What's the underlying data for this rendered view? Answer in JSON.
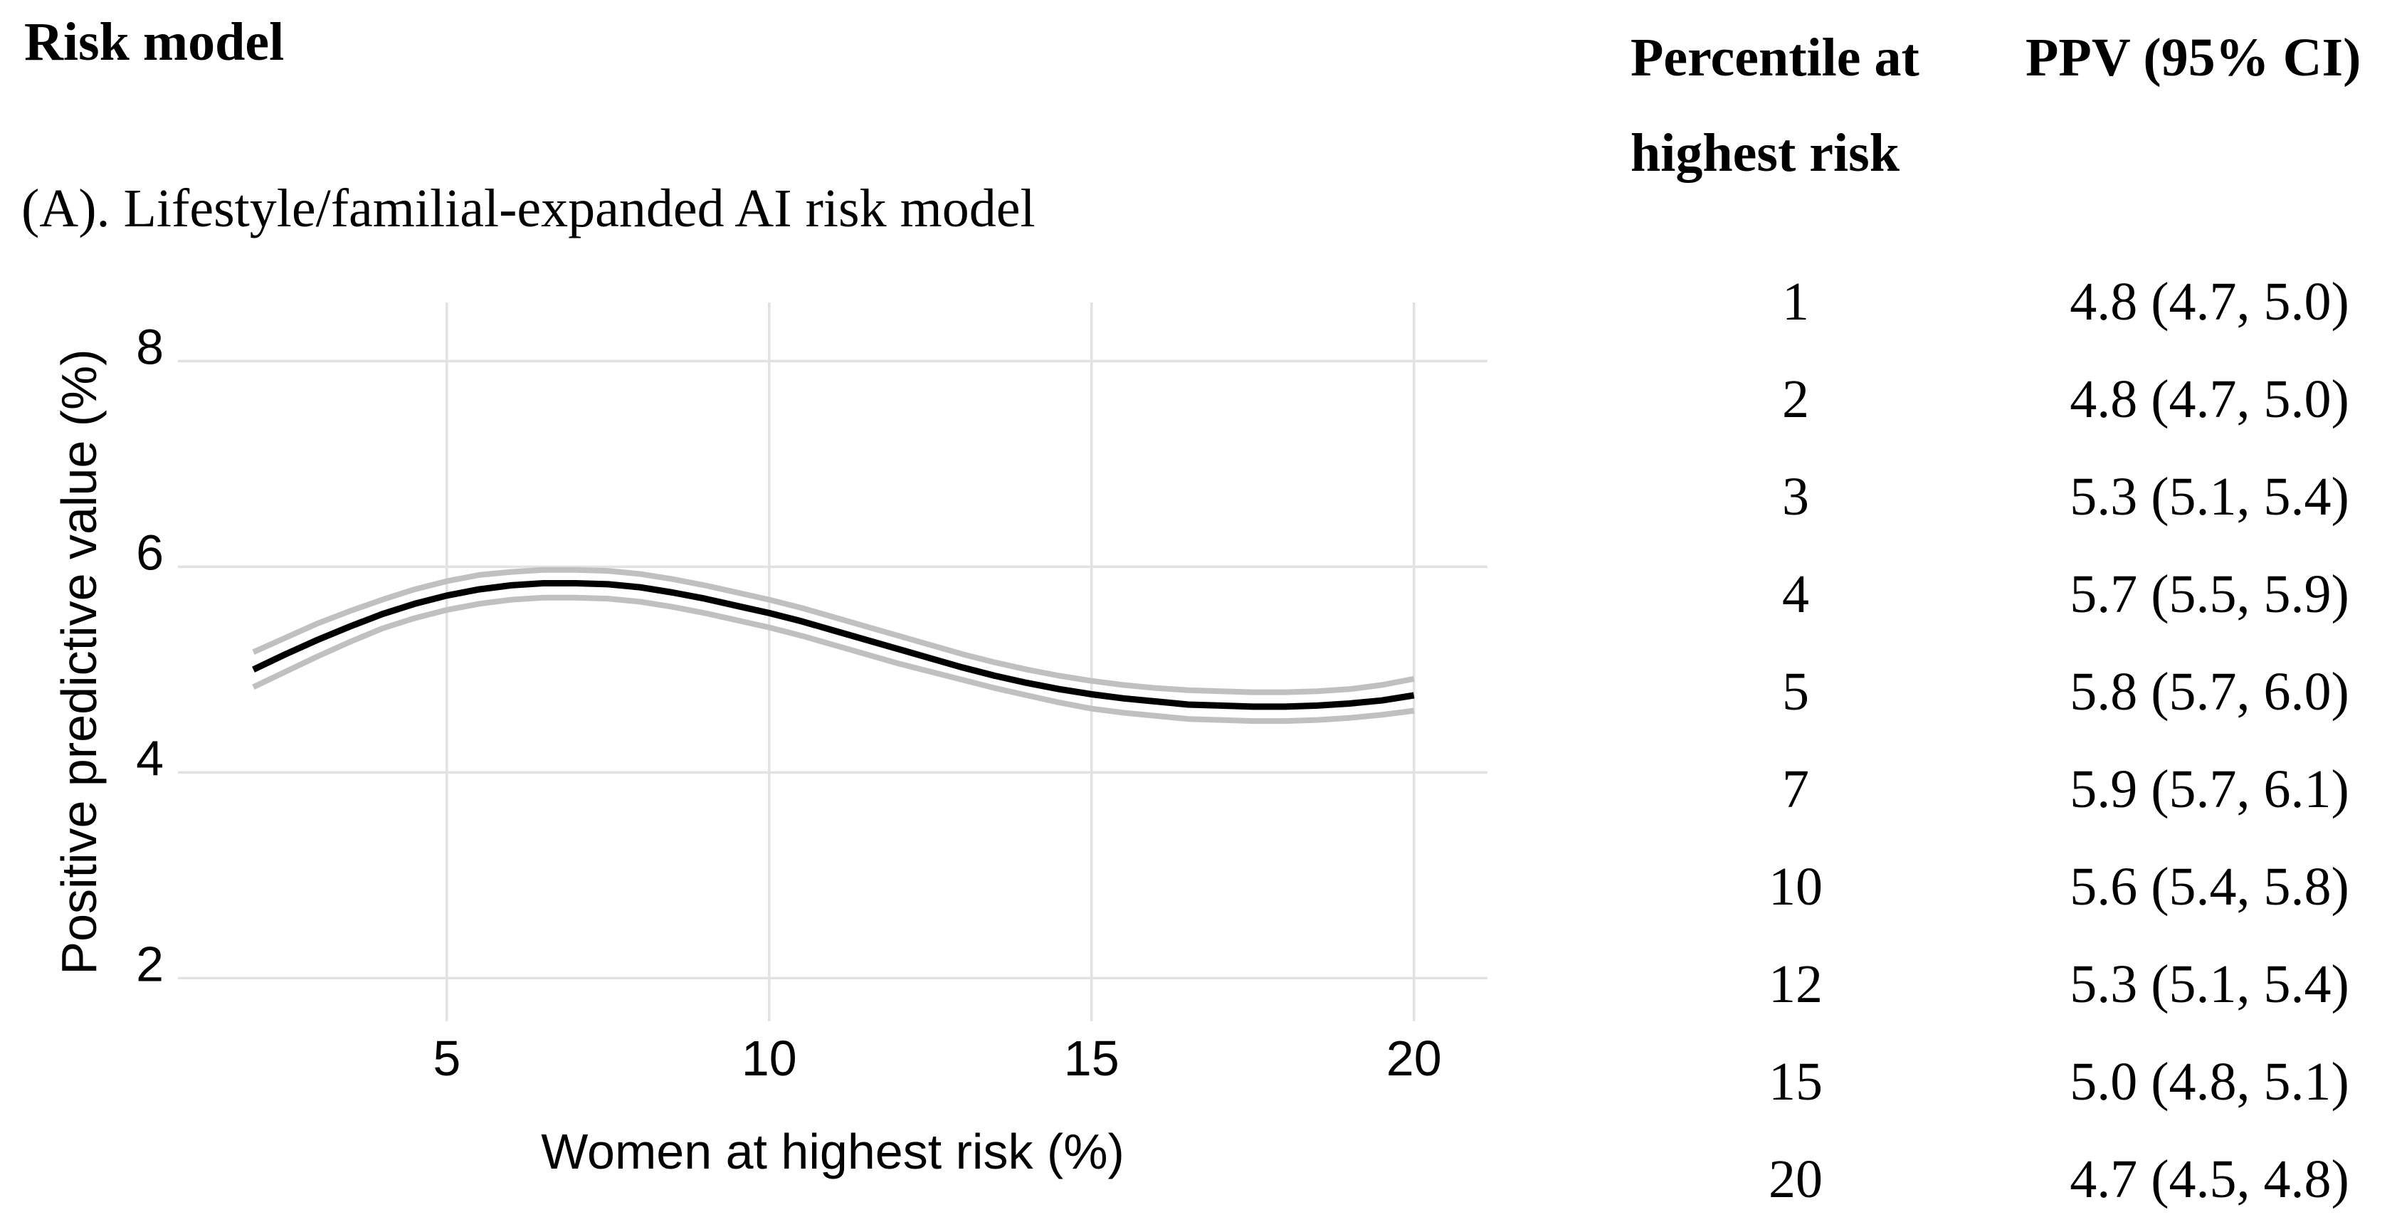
{
  "page": {
    "background": "#ffffff"
  },
  "left_panel": {
    "heading": "Risk model",
    "subtitle": "(A). Lifestyle/familial-expanded AI risk model"
  },
  "chart_data": {
    "type": "line",
    "title": "(A). Lifestyle/familial-expanded AI risk model",
    "xlabel": "Women at highest risk (%)",
    "ylabel": "Positive predictive value (%)",
    "xlim": [
      0.83,
      21.14
    ],
    "ylim": [
      1.58,
      8.57
    ],
    "x_ticks": [
      5,
      10,
      15,
      20
    ],
    "y_ticks": [
      8,
      6,
      4,
      2
    ],
    "grid": true,
    "legend": false,
    "grid_color": "#e2e2e2",
    "x": [
      2,
      2.5,
      3,
      3.5,
      4,
      4.5,
      5,
      5.5,
      6,
      6.5,
      7,
      7.5,
      8,
      8.5,
      9,
      9.5,
      10,
      10.5,
      11,
      11.5,
      12,
      12.5,
      13,
      13.5,
      14,
      14.5,
      15,
      15.5,
      16,
      16.5,
      17,
      17.5,
      18,
      18.5,
      19,
      19.5,
      20
    ],
    "series": [
      {
        "name": "upper-95ci",
        "color": "#c0c0c0",
        "stroke_width": 8,
        "y": [
          5.17,
          5.31,
          5.45,
          5.57,
          5.68,
          5.78,
          5.86,
          5.92,
          5.95,
          5.97,
          5.97,
          5.96,
          5.93,
          5.88,
          5.82,
          5.75,
          5.68,
          5.6,
          5.51,
          5.42,
          5.33,
          5.24,
          5.15,
          5.07,
          5.0,
          4.94,
          4.89,
          4.85,
          4.82,
          4.8,
          4.79,
          4.78,
          4.78,
          4.79,
          4.81,
          4.85,
          4.91
        ]
      },
      {
        "name": "lower-95ci",
        "color": "#c0c0c0",
        "stroke_width": 8,
        "y": [
          4.83,
          4.98,
          5.13,
          5.27,
          5.4,
          5.5,
          5.58,
          5.64,
          5.68,
          5.7,
          5.7,
          5.69,
          5.66,
          5.61,
          5.55,
          5.48,
          5.41,
          5.33,
          5.24,
          5.15,
          5.06,
          4.98,
          4.9,
          4.82,
          4.75,
          4.68,
          4.62,
          4.58,
          4.55,
          4.52,
          4.51,
          4.5,
          4.5,
          4.51,
          4.53,
          4.56,
          4.6
        ]
      },
      {
        "name": "ppv",
        "color": "#000000",
        "stroke_width": 9,
        "y": [
          5.0,
          5.15,
          5.29,
          5.42,
          5.54,
          5.64,
          5.72,
          5.78,
          5.82,
          5.84,
          5.84,
          5.83,
          5.8,
          5.75,
          5.69,
          5.62,
          5.55,
          5.47,
          5.38,
          5.29,
          5.2,
          5.11,
          5.02,
          4.94,
          4.87,
          4.81,
          4.76,
          4.72,
          4.69,
          4.66,
          4.65,
          4.64,
          4.64,
          4.65,
          4.67,
          4.7,
          4.75
        ]
      }
    ]
  },
  "table": {
    "header_col1_line1": "Percentile at",
    "header_col1_line2": "highest risk",
    "header_col2": "PPV (95% CI)",
    "rows": [
      {
        "percentile": "1",
        "ppv": "4.8 (4.7, 5.0)"
      },
      {
        "percentile": "2",
        "ppv": "4.8 (4.7, 5.0)"
      },
      {
        "percentile": "3",
        "ppv": "5.3 (5.1, 5.4)"
      },
      {
        "percentile": "4",
        "ppv": "5.7 (5.5, 5.9)"
      },
      {
        "percentile": "5",
        "ppv": "5.8 (5.7, 6.0)"
      },
      {
        "percentile": "7",
        "ppv": "5.9 (5.7, 6.1)"
      },
      {
        "percentile": "10",
        "ppv": "5.6 (5.4, 5.8)"
      },
      {
        "percentile": "12",
        "ppv": "5.3 (5.1, 5.4)"
      },
      {
        "percentile": "15",
        "ppv": "5.0 (4.8, 5.1)"
      },
      {
        "percentile": "20",
        "ppv": "4.7 (4.5, 4.8)"
      }
    ]
  }
}
